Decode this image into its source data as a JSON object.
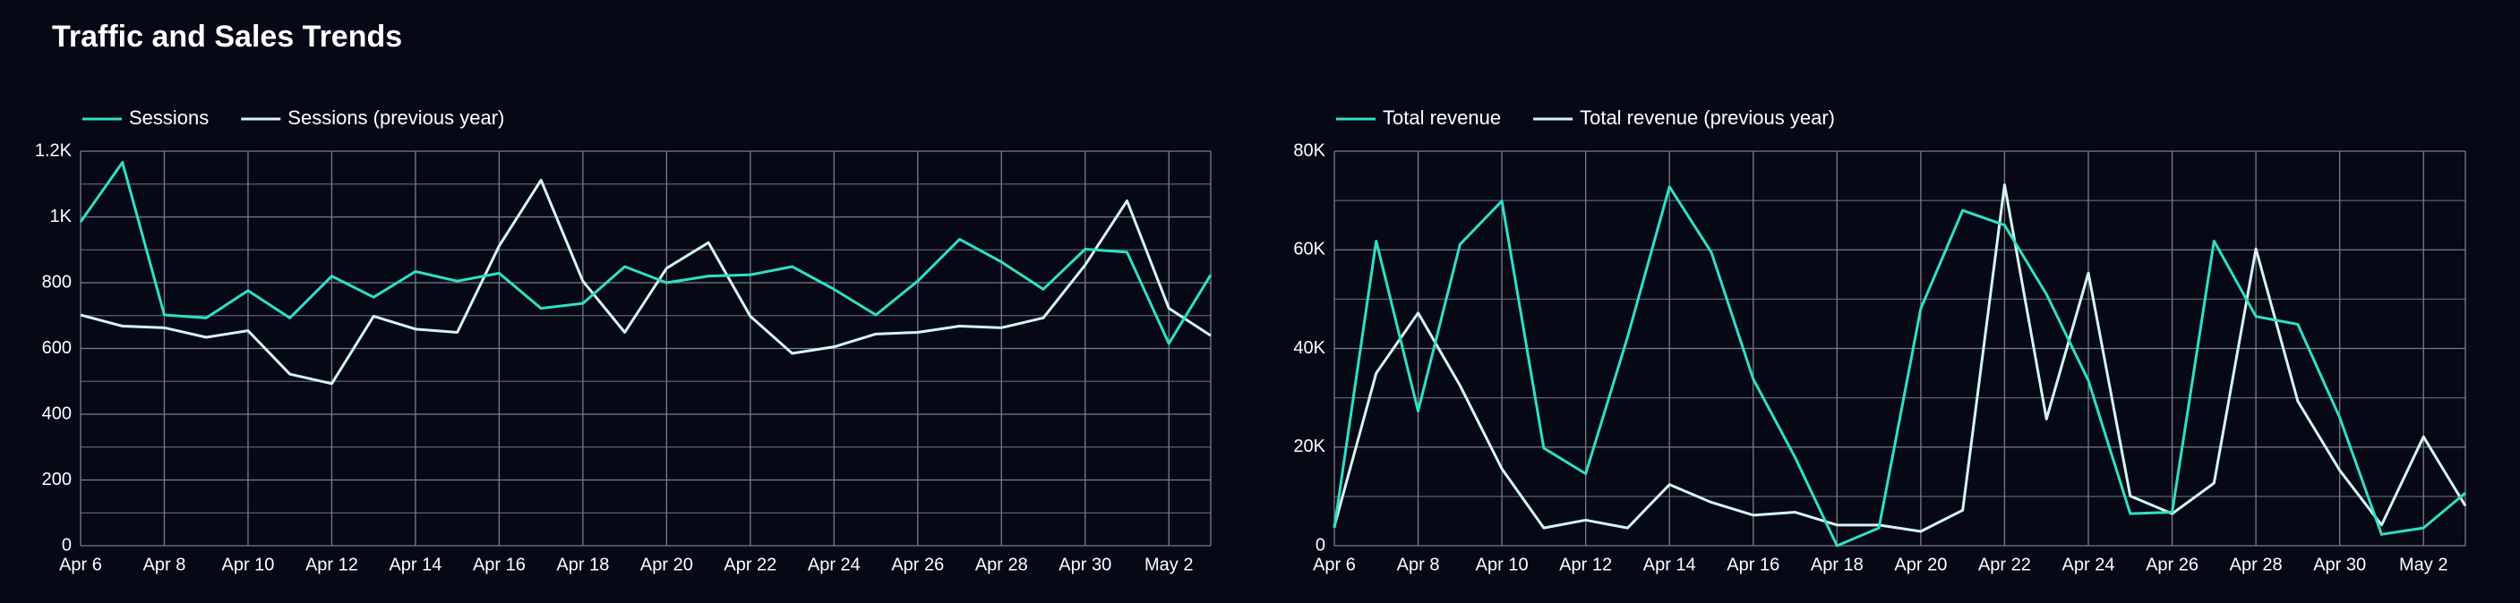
{
  "title": "Traffic and Sales Trends",
  "chart_data": [
    {
      "type": "line",
      "legend": "top-left",
      "grid": true,
      "categories": [
        "Apr 6",
        null,
        "Apr 8",
        null,
        "Apr 10",
        null,
        "Apr 12",
        null,
        "Apr 14",
        null,
        "Apr 16",
        null,
        "Apr 18",
        null,
        "Apr 20",
        null,
        "Apr 22",
        null,
        "Apr 24",
        null,
        "Apr 26",
        null,
        "Apr 28",
        null,
        "Apr 30",
        null,
        "May 2",
        null
      ],
      "ylim": [
        0,
        1200
      ],
      "yticks": [
        0,
        200,
        400,
        600,
        800,
        {
          "value": 1000,
          "label": "1K"
        },
        {
          "value": 1200,
          "label": "1.2K"
        }
      ],
      "series": [
        {
          "name": "Sessions",
          "color": "#2fe0c6",
          "values": [
            985,
            1166,
            702,
            693,
            776,
            693,
            820,
            756,
            834,
            805,
            829,
            722,
            737,
            849,
            800,
            820,
            824,
            849,
            780,
            702,
            805,
            932,
            863,
            780,
            902,
            893,
            615,
            824
          ]
        },
        {
          "name": "Sessions (previous year)",
          "color": "#d6f5f0",
          "values": [
            702,
            668,
            663,
            634,
            654,
            522,
            493,
            698,
            659,
            649,
            912,
            1112,
            805,
            649,
            844,
            922,
            698,
            585,
            605,
            644,
            649,
            668,
            663,
            693,
            854,
            1049,
            722,
            639
          ]
        }
      ]
    },
    {
      "type": "line",
      "legend": "top-left",
      "grid": true,
      "categories": [
        "Apr 6",
        null,
        "Apr 8",
        null,
        "Apr 10",
        null,
        "Apr 12",
        null,
        "Apr 14",
        null,
        "Apr 16",
        null,
        "Apr 18",
        null,
        "Apr 20",
        null,
        "Apr 22",
        null,
        "Apr 24",
        null,
        "Apr 26",
        null,
        "Apr 28",
        null,
        "Apr 30",
        null,
        "May 2",
        null
      ],
      "ylim": [
        0,
        80000
      ],
      "yticks": [
        0,
        {
          "value": 20000,
          "label": "20K"
        },
        {
          "value": 40000,
          "label": "40K"
        },
        {
          "value": 60000,
          "label": "60K"
        },
        {
          "value": 80000,
          "label": "80K"
        }
      ],
      "series": [
        {
          "name": "Total revenue",
          "color": "#2fe0c6",
          "values": [
            3600,
            61800,
            27300,
            61100,
            69900,
            19800,
            14600,
            42300,
            72800,
            59500,
            33800,
            17900,
            0,
            3600,
            48100,
            68000,
            65000,
            51000,
            33500,
            6500,
            6800,
            61800,
            46500,
            44900,
            26000,
            2300,
            3600,
            10700
          ]
        },
        {
          "name": "Total revenue (previous year)",
          "color": "#d6f5f0",
          "values": [
            3900,
            35000,
            47200,
            32500,
            15600,
            3600,
            5200,
            3600,
            12400,
            8800,
            6200,
            6800,
            4200,
            4200,
            2900,
            7200,
            73200,
            25700,
            55300,
            10100,
            6500,
            12700,
            60200,
            29300,
            15300,
            4200,
            22100,
            8100
          ]
        }
      ]
    }
  ]
}
